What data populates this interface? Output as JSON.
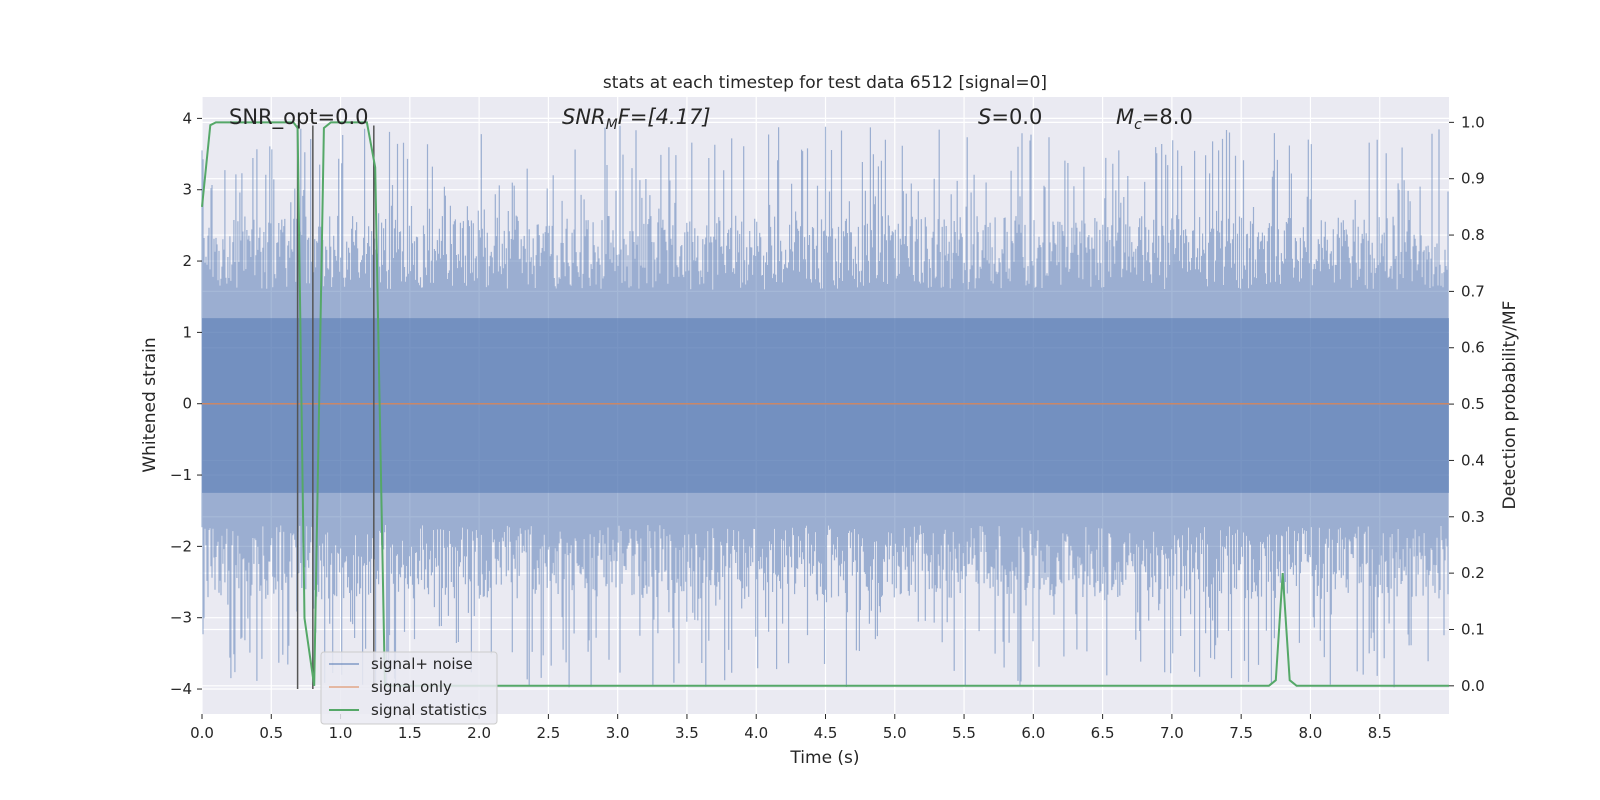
{
  "chart_data": {
    "type": "line",
    "title": "stats at each timestep for test data 6512 [signal=0]",
    "xlabel": "Time (s)",
    "ylabel": "Whitened strain",
    "ylabel_right": "Detection probability/MF",
    "xlim": [
      0,
      9.0
    ],
    "ylim": [
      -4.35,
      4.3
    ],
    "ylim_right": [
      -0.05,
      1.045
    ],
    "x_ticks": [
      0.0,
      0.5,
      1.0,
      1.5,
      2.0,
      2.5,
      3.0,
      3.5,
      4.0,
      4.5,
      5.0,
      5.5,
      6.0,
      6.5,
      7.0,
      7.5,
      8.0,
      8.5
    ],
    "x_tick_labels": [
      "0.0",
      "0.5",
      "1.0",
      "1.5",
      "2.0",
      "2.5",
      "3.0",
      "3.5",
      "4.0",
      "4.5",
      "5.0",
      "5.5",
      "6.0",
      "6.5",
      "7.0",
      "7.5",
      "8.0",
      "8.5"
    ],
    "y_ticks": [
      4,
      3,
      2,
      1,
      0,
      -1,
      -2,
      -3,
      -4
    ],
    "y_tick_labels": [
      "4",
      "3",
      "2",
      "1",
      "0",
      "−1",
      "−2",
      "−3",
      "−4"
    ],
    "y_right_ticks": [
      1.0,
      0.9,
      0.8,
      0.7,
      0.6,
      0.5,
      0.4,
      0.3,
      0.2,
      0.1,
      0.0
    ],
    "y_right_tick_labels": [
      "1.0",
      "0.9",
      "0.8",
      "0.7",
      "0.6",
      "0.5",
      "0.4",
      "0.3",
      "0.2",
      "0.1",
      "0.0"
    ],
    "grid": true,
    "legend_position": "lower-left",
    "annotations": {
      "snr_opt": "SNR_opt=0.0",
      "snr_mf_main": "SNR",
      "snr_mf_sub": "M",
      "snr_mf_rest": "F=[4.17]",
      "s_main": "S",
      "s_rest": "=0.0",
      "mc_main": "M",
      "mc_sub": "c",
      "mc_rest": "=8.0"
    },
    "series": [
      {
        "name": "signal+ noise",
        "color": "#4c72b0",
        "style": "noise band",
        "typical_range": [
          -1.7,
          1.6
        ],
        "peak_max": 3.9,
        "peak_min": -4.0
      },
      {
        "name": "signal only",
        "color": "#dd8452",
        "x": [
          0.0,
          9.0
        ],
        "y": [
          0.0,
          0.0
        ]
      },
      {
        "name": "signal statistics",
        "color": "#55a868",
        "axis": "right",
        "x": [
          0.0,
          0.06,
          0.1,
          0.66,
          0.69,
          0.74,
          0.81,
          0.88,
          0.93,
          1.19,
          1.25,
          1.32,
          1.4,
          7.7,
          7.75,
          7.8,
          7.85,
          7.9,
          9.0
        ],
        "y": [
          0.85,
          0.995,
          1.0,
          1.0,
          0.99,
          0.12,
          0.0,
          0.99,
          1.0,
          1.0,
          0.92,
          0.0,
          0.0,
          0.0,
          0.01,
          0.2,
          0.01,
          0.0,
          0.0
        ]
      }
    ],
    "vertical_markers_x": [
      0.69,
      0.8,
      1.24
    ]
  }
}
